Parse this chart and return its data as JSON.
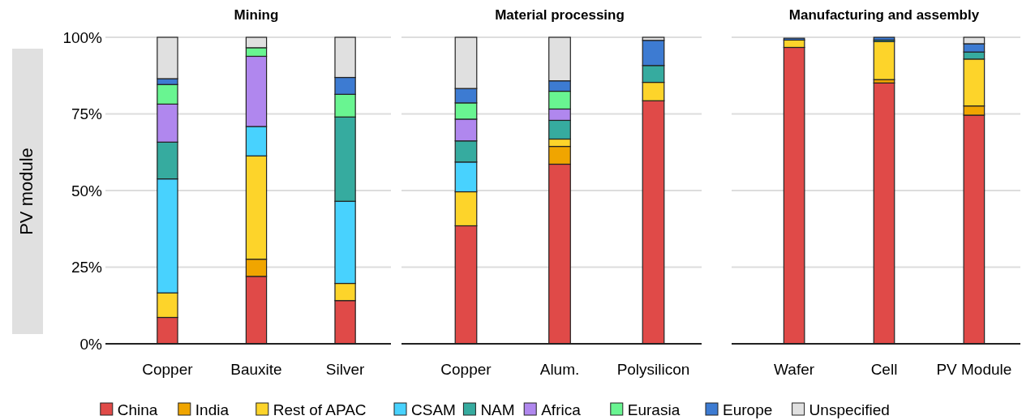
{
  "chart_data": [
    {
      "type": "bar",
      "stacked": true,
      "title": "Mining",
      "ylabel": "PV module",
      "categories": [
        "Copper",
        "Bauxite",
        "Silver"
      ],
      "ylim": [
        0,
        100
      ],
      "yticks": [
        {
          "value": 0,
          "label": "0%"
        },
        {
          "value": 25,
          "label": "25%"
        },
        {
          "value": 50,
          "label": "50%"
        },
        {
          "value": 75,
          "label": "75%"
        },
        {
          "value": 100,
          "label": "100%"
        }
      ],
      "grid": "y",
      "legend": "bottom",
      "series": [
        {
          "name": "China",
          "color": "#e04a48",
          "values": [
            8.6,
            22.0,
            14.1
          ]
        },
        {
          "name": "India",
          "color": "#f0a500",
          "values": [
            0,
            5.6,
            0
          ]
        },
        {
          "name": "Rest of APAC",
          "color": "#fdd42a",
          "values": [
            8.0,
            33.7,
            5.6
          ]
        },
        {
          "name": "CSAM",
          "color": "#48d2fe",
          "values": [
            37.2,
            9.6,
            26.8
          ]
        },
        {
          "name": "NAM",
          "color": "#36ab9f",
          "values": [
            12.0,
            0,
            27.5
          ]
        },
        {
          "name": "Africa",
          "color": "#b087ee",
          "values": [
            12.4,
            22.9,
            0
          ]
        },
        {
          "name": "Eurasia",
          "color": "#69f591",
          "values": [
            6.4,
            2.8,
            7.4
          ]
        },
        {
          "name": "Europe",
          "color": "#3d7bd2",
          "values": [
            1.9,
            0,
            5.5
          ]
        },
        {
          "name": "Unspecified",
          "color": "#e0e0e0",
          "values": [
            13.5,
            3.4,
            13.1
          ]
        }
      ]
    },
    {
      "type": "bar",
      "stacked": true,
      "title": "Material processing",
      "categories": [
        "Copper",
        "Alum.",
        "Polysilicon"
      ],
      "ylim": [
        0,
        100
      ],
      "yticks": [
        {
          "value": 0,
          "label": null
        },
        {
          "value": 25,
          "label": null
        },
        {
          "value": 50,
          "label": null
        },
        {
          "value": 75,
          "label": null
        },
        {
          "value": 100,
          "label": null
        }
      ],
      "tick_labels": "x",
      "grid": "y",
      "series": [
        {
          "color": "#e04a48",
          "values": [
            38.5,
            58.6,
            79.3
          ]
        },
        {
          "color": "#f0a500",
          "values": [
            0,
            5.8,
            0
          ]
        },
        {
          "color": "#fdd42a",
          "values": [
            11.1,
            2.4,
            6.0
          ]
        },
        {
          "color": "#48d2fe",
          "values": [
            9.7,
            0,
            0
          ]
        },
        {
          "color": "#36ab9f",
          "values": [
            6.9,
            6.1,
            5.5
          ]
        },
        {
          "color": "#b087ee",
          "values": [
            7.1,
            3.7,
            0
          ]
        },
        {
          "color": "#69f591",
          "values": [
            5.3,
            5.8,
            0
          ]
        },
        {
          "color": "#3d7bd2",
          "values": [
            4.7,
            3.4,
            8.2
          ]
        },
        {
          "color": "#e0e0e0",
          "values": [
            16.7,
            14.2,
            1.0
          ]
        }
      ]
    },
    {
      "type": "bar",
      "stacked": true,
      "title": "Manufacturing and assembly",
      "categories": [
        "Wafer",
        "Cell",
        "PV Module"
      ],
      "ylim": [
        0,
        100
      ],
      "yticks": [
        {
          "value": 0,
          "label": null
        },
        {
          "value": 25,
          "label": null
        },
        {
          "value": 50,
          "label": null
        },
        {
          "value": 75,
          "label": null
        },
        {
          "value": 100,
          "label": null
        }
      ],
      "tick_labels": "x",
      "grid": "y",
      "series": [
        {
          "color": "#e04a48",
          "values": [
            96.7,
            85.1,
            74.6
          ]
        },
        {
          "color": "#f0a500",
          "values": [
            0,
            1.1,
            3.0
          ]
        },
        {
          "color": "#fdd42a",
          "values": [
            2.4,
            12.4,
            15.3
          ]
        },
        {
          "color": "#48d2fe",
          "values": [
            0,
            0,
            0
          ]
        },
        {
          "color": "#36ab9f",
          "values": [
            null,
            0.5,
            2.3
          ]
        },
        {
          "color": "#b087ee",
          "values": [
            0,
            0,
            0
          ]
        },
        {
          "color": "#69f591",
          "values": [
            0,
            0,
            0
          ]
        },
        {
          "color": "#3d7bd2",
          "values": [
            0.6,
            0.9,
            2.7
          ]
        },
        {
          "color": "#e0e0e0",
          "values": [
            0,
            0,
            2.1
          ]
        }
      ]
    }
  ]
}
